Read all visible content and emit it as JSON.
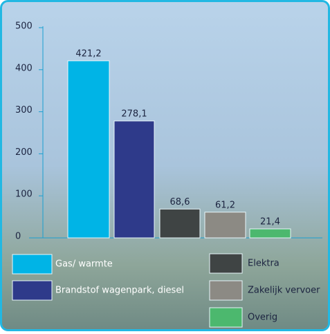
{
  "chart_data": {
    "type": "bar",
    "categories": [
      "Gas/ warmte",
      "Brandstof wagenpark, diesel",
      "Elektra",
      "Zakelijk vervoer",
      "Overig"
    ],
    "values": [
      421.2,
      278.1,
      68.6,
      61.2,
      21.4
    ],
    "value_labels": [
      "421,2",
      "278,1",
      "68,6",
      "61,2",
      "21,4"
    ],
    "colors": [
      "#00b4e6",
      "#2e3a8a",
      "#3f4444",
      "#8c8a84",
      "#4cb86e"
    ],
    "ylim": [
      0,
      500
    ],
    "yticks": [
      0,
      100,
      200,
      300,
      400,
      500
    ]
  }
}
